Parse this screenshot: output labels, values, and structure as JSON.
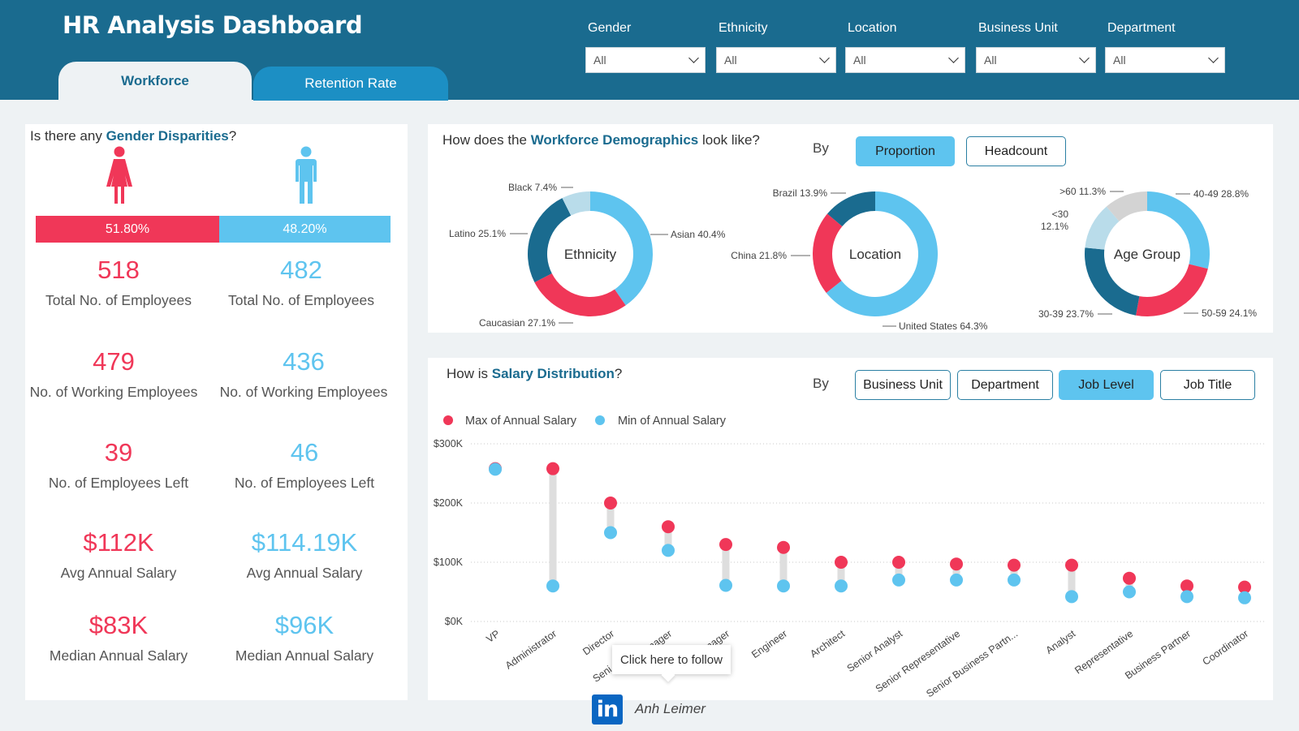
{
  "app_title": "HR Analysis Dashboard",
  "tabs": [
    {
      "label": "Workforce",
      "active": true
    },
    {
      "label": "Retention Rate",
      "active": false
    }
  ],
  "filters": [
    {
      "label": "Gender",
      "value": "All"
    },
    {
      "label": "Ethnicity",
      "value": "All"
    },
    {
      "label": "Location",
      "value": "All"
    },
    {
      "label": "Business Unit",
      "value": "All"
    },
    {
      "label": "Department",
      "value": "All"
    }
  ],
  "gender": {
    "q_pre": "Is there any ",
    "q_bold": "Gender Disparities",
    "q_post": "?",
    "female_pct_label": "51.80%",
    "male_pct_label": "48.20%",
    "female_share": 0.518,
    "female": [
      {
        "value": "518",
        "label": "Total No. of Employees"
      },
      {
        "value": "479",
        "label": "No. of Working Employees"
      },
      {
        "value": "39",
        "label": "No. of Employees Left"
      },
      {
        "value": "$112K",
        "label": "Avg Annual Salary"
      },
      {
        "value": "$83K",
        "label": "Median Annual Salary"
      }
    ],
    "male": [
      {
        "value": "482",
        "label": "Total No. of Employees"
      },
      {
        "value": "436",
        "label": "No. of Working Employees"
      },
      {
        "value": "46",
        "label": "No. of Employees Left"
      },
      {
        "value": "$114.19K",
        "label": "Avg Annual Salary"
      },
      {
        "value": "$96K",
        "label": "Median Annual Salary"
      }
    ]
  },
  "demographics": {
    "q_pre": "How does the ",
    "q_bold": "Workforce Demographics",
    "q_post": " look like?",
    "by_label": "By",
    "buttons": [
      {
        "label": "Proportion",
        "active": true
      },
      {
        "label": "Headcount",
        "active": false
      }
    ],
    "donuts": [
      {
        "center": "Ethnicity",
        "slices": [
          {
            "name": "Asian",
            "pct": 40.4,
            "label": "Asian 40.4%",
            "color": "#5ec4ef"
          },
          {
            "name": "Caucasian",
            "pct": 27.1,
            "label": "Caucasian 27.1%",
            "color": "#f03758"
          },
          {
            "name": "Latino",
            "pct": 25.1,
            "label": "Latino 25.1%",
            "color": "#1a6b8f"
          },
          {
            "name": "Black",
            "pct": 7.4,
            "label": "Black 7.4%",
            "color": "#b9dcea"
          }
        ]
      },
      {
        "center": "Location",
        "slices": [
          {
            "name": "United States",
            "pct": 64.3,
            "label": "United States 64.3%",
            "color": "#5ec4ef"
          },
          {
            "name": "China",
            "pct": 21.8,
            "label": "China 21.8%",
            "color": "#f03758"
          },
          {
            "name": "Brazil",
            "pct": 13.9,
            "label": "Brazil 13.9%",
            "color": "#1a6b8f"
          }
        ]
      },
      {
        "center": "Age Group",
        "slices": [
          {
            "name": "40-49",
            "pct": 28.8,
            "label": "40-49 28.8%",
            "color": "#5ec4ef"
          },
          {
            "name": "50-59",
            "pct": 24.1,
            "label": "50-59 24.1%",
            "color": "#f03758"
          },
          {
            "name": "30-39",
            "pct": 23.7,
            "label": "30-39 23.7%",
            "color": "#1a6b8f"
          },
          {
            "name": "<30",
            "pct": 12.1,
            "label_a": "<30",
            "label_b": "12.1%",
            "color": "#b9dcea"
          },
          {
            "name": ">60",
            "pct": 11.3,
            "label": ">60 11.3%",
            "color": "#d3d3d3"
          }
        ]
      }
    ]
  },
  "salary": {
    "q_pre": "How is ",
    "q_bold": "Salary Distribution",
    "q_post": "?",
    "by_label": "By",
    "buttons": [
      {
        "label": "Business Unit",
        "active": false
      },
      {
        "label": "Department",
        "active": false
      },
      {
        "label": "Job Level",
        "active": true
      },
      {
        "label": "Job Title",
        "active": false
      }
    ]
  },
  "chart_data": {
    "type": "scatter",
    "series": [
      {
        "name": "Max of Annual Salary",
        "color": "#f03758",
        "values": [
          258,
          258,
          200,
          160,
          130,
          125,
          100,
          100,
          97,
          95,
          95,
          73,
          60,
          58
        ]
      },
      {
        "name": "Min of Annual Salary",
        "color": "#5ec4ef",
        "values": [
          257,
          60,
          150,
          120,
          61,
          60,
          60,
          70,
          70,
          70,
          42,
          50,
          42,
          40
        ]
      }
    ],
    "categories": [
      "VP",
      "Administrator",
      "Director",
      "Senior Manager",
      "Manager",
      "Engineer",
      "Architect",
      "Senior Analyst",
      "Senior Representative",
      "Senior Business Partn...",
      "Analyst",
      "Representative",
      "Business Partner",
      "Coordinator"
    ],
    "visible_category_labels": [
      "VP",
      "Administrator",
      "Director",
      "Seni",
      "nager",
      "nager",
      "Engineer",
      "Architect",
      "Senior Analyst",
      "Senior Representative",
      "Senior Business Partn...",
      "Analyst",
      "Representative",
      "Business Partner",
      "Coordinator"
    ],
    "yticks": [
      "$0K",
      "$100K",
      "$200K",
      "$300K"
    ],
    "ylim": [
      0,
      300
    ],
    "unit": "thousand USD",
    "legend_position": "top-left",
    "grid": true
  },
  "tooltip": "Click here to follow",
  "linkedin_icon": "linkedin-icon",
  "linkedin_text": "in",
  "author": "Anh Leimer"
}
